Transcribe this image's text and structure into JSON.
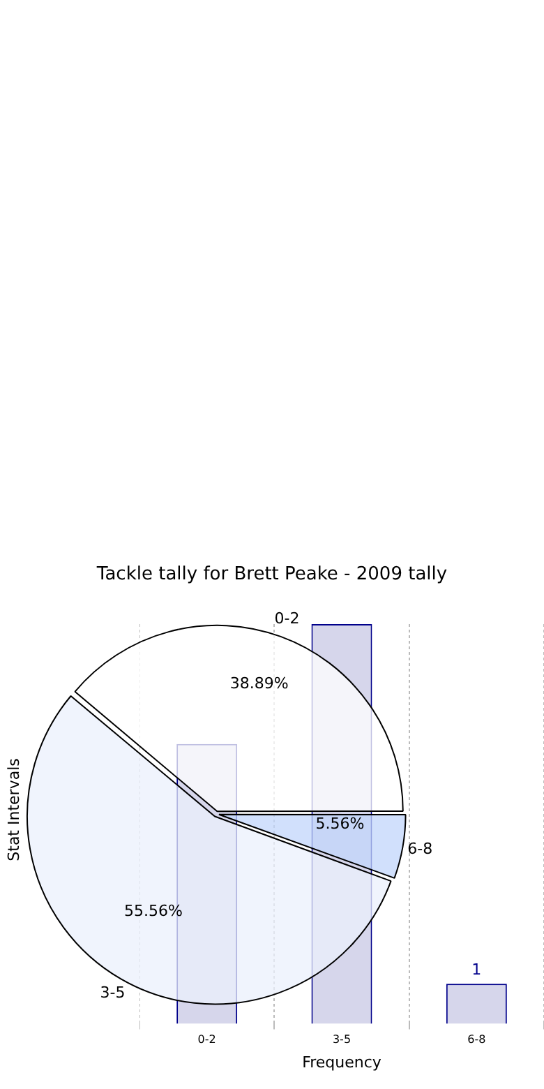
{
  "chart_data": [
    {
      "type": "pie",
      "title": "Tackle tally for Brett Peake - 2009 tally",
      "categories": [
        "0-2",
        "3-5",
        "6-8"
      ],
      "values": [
        38.89,
        55.56,
        5.56
      ],
      "colors": [
        "#ffffff",
        "#ebf1fd",
        "#c2d6fb"
      ],
      "value_labels": [
        "38.89%",
        "55.56%",
        "5.56%"
      ],
      "legend": false
    },
    {
      "type": "bar",
      "categories": [
        "0-2",
        "3-5",
        "6-8"
      ],
      "values": [
        7,
        10,
        1
      ],
      "value_labels": [
        null,
        null,
        "1"
      ],
      "color": "#cccce6",
      "xlabel": "Frequency",
      "ylabel": "Stat Intervals",
      "grid": "x",
      "tick_labels": "x",
      "legend": false
    }
  ]
}
